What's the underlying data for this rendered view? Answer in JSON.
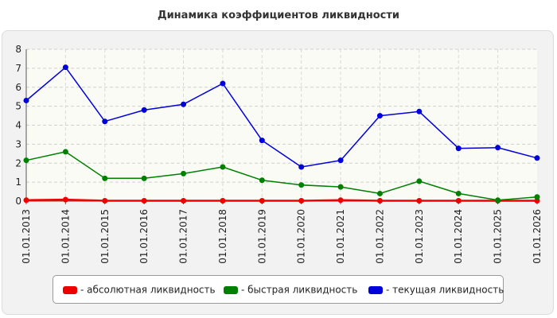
{
  "chart_data": {
    "type": "line",
    "title": "Динамика коэффициентов ликвидности",
    "xlabel": "",
    "ylabel": "",
    "categories": [
      "01.01.2013",
      "01.01.2014",
      "01.01.2015",
      "01.01.2016",
      "01.01.2017",
      "01.01.2018",
      "01.01.2019",
      "01.01.2020",
      "01.01.2021",
      "01.01.2022",
      "01.01.2023",
      "01.01.2024",
      "01.01.2025",
      "01.01.2026"
    ],
    "ylim": [
      0,
      8
    ],
    "yticks": [
      0,
      1,
      2,
      3,
      4,
      5,
      6,
      7,
      8
    ],
    "grid": true,
    "legend_position": "bottom",
    "series": [
      {
        "name": "- абсолютная ликвидность",
        "color": "#ee0000",
        "values": [
          0.05,
          0.08,
          0.02,
          0.02,
          0.02,
          0.02,
          0.02,
          0.02,
          0.05,
          0.02,
          0.02,
          0.02,
          0.02,
          0.02
        ]
      },
      {
        "name": "- быстрая ликвидность",
        "color": "#008000",
        "values": [
          2.15,
          2.6,
          1.2,
          1.2,
          1.45,
          1.8,
          1.1,
          0.85,
          0.75,
          0.4,
          1.05,
          0.4,
          0.05,
          0.22
        ]
      },
      {
        "name": "- текущая ликвидность",
        "color": "#0000dd",
        "values": [
          5.3,
          7.05,
          4.2,
          4.8,
          5.1,
          6.2,
          3.2,
          1.8,
          2.15,
          4.5,
          4.72,
          2.78,
          2.82,
          2.27
        ]
      }
    ]
  }
}
